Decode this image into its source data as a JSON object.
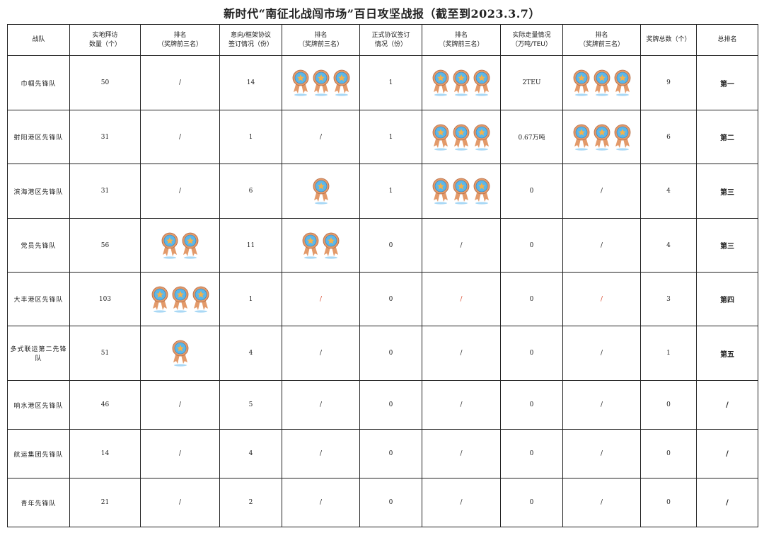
{
  "title": "新时代“南征北战闯市场”百日攻坚战报（截至到2023.3.7）",
  "headers": [
    "战队",
    "实地拜访\n数量（个）",
    "排名\n（奖牌前三名）",
    "意向/框架协议\n签订情况（份）",
    "排名\n（奖牌前三名）",
    "正式协议签订\n情况（份）",
    "排名\n（奖牌前三名）",
    "实际走量情况\n（万吨/TEU）",
    "排名\n（奖牌前三名）",
    "奖牌总数（个）",
    "总排名"
  ],
  "colors": {
    "medal_ring": "#e39a6a",
    "medal_face": "#5bb7ea",
    "medal_star": "#f5b24a",
    "slash_highlight": "#d9472b"
  },
  "rows": [
    {
      "team": "巾帼先锋队",
      "visits": "50",
      "visit_medals": "/",
      "intent": "14",
      "intent_medals": 3,
      "formal": "1",
      "formal_medals": 3,
      "volume": "2TEU",
      "volume_medals": 3,
      "total": "9",
      "rank": "第一"
    },
    {
      "team": "射阳港区先锋队",
      "visits": "31",
      "visit_medals": "/",
      "intent": "1",
      "intent_medals": "/",
      "formal": "1",
      "formal_medals": 3,
      "volume": "0.67万吨",
      "volume_medals": 3,
      "total": "6",
      "rank": "第二"
    },
    {
      "team": "滨海港区先锋队",
      "visits": "31",
      "visit_medals": "/",
      "intent": "6",
      "intent_medals": 1,
      "formal": "1",
      "formal_medals": 3,
      "volume": "0",
      "volume_medals": "/",
      "total": "4",
      "rank": "第三"
    },
    {
      "team": "党员先锋队",
      "visits": "56",
      "visit_medals": 2,
      "intent": "11",
      "intent_medals": 2,
      "formal": "0",
      "formal_medals": "/",
      "volume": "0",
      "volume_medals": "/",
      "total": "4",
      "rank": "第三"
    },
    {
      "team": "大丰港区先锋队",
      "visits": "103",
      "visit_medals": 3,
      "intent": "1",
      "intent_medals": "/",
      "formal": "0",
      "formal_medals": "/",
      "volume": "0",
      "volume_medals": "/",
      "total": "3",
      "rank": "第四",
      "red_slashes": true
    },
    {
      "team": "多式联运第二先锋队",
      "visits": "51",
      "visit_medals": 1,
      "intent": "4",
      "intent_medals": "/",
      "formal": "0",
      "formal_medals": "/",
      "volume": "0",
      "volume_medals": "/",
      "total": "1",
      "rank": "第五"
    },
    {
      "team": "响水港区先锋队",
      "visits": "46",
      "visit_medals": "/",
      "intent": "5",
      "intent_medals": "/",
      "formal": "0",
      "formal_medals": "/",
      "volume": "0",
      "volume_medals": "/",
      "total": "0",
      "rank": "/"
    },
    {
      "team": "航运集团先锋队",
      "visits": "14",
      "visit_medals": "/",
      "intent": "4",
      "intent_medals": "/",
      "formal": "0",
      "formal_medals": "/",
      "volume": "0",
      "volume_medals": "/",
      "total": "0",
      "rank": "/"
    },
    {
      "team": "青年先锋队",
      "visits": "21",
      "visit_medals": "/",
      "intent": "2",
      "intent_medals": "/",
      "formal": "0",
      "formal_medals": "/",
      "volume": "0",
      "volume_medals": "/",
      "total": "0",
      "rank": "/"
    }
  ]
}
